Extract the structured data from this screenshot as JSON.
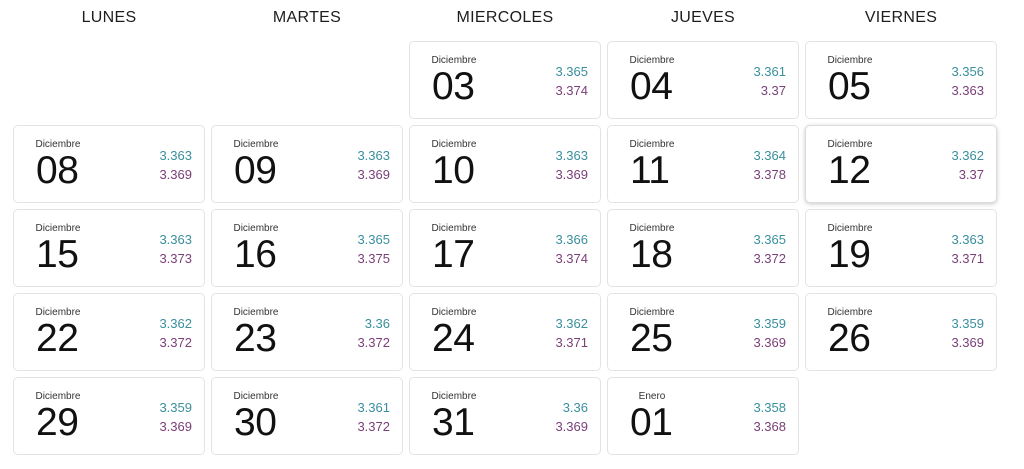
{
  "headers": [
    "LUNES",
    "MARTES",
    "MIERCOLES",
    "JUEVES",
    "VIERNES"
  ],
  "colors": {
    "buy": "#3a8f9d",
    "sell": "#7a3f78"
  },
  "weeks": [
    [
      null,
      null,
      {
        "month": "Diciembre",
        "day": "03",
        "buy": "3.365",
        "sell": "3.374"
      },
      {
        "month": "Diciembre",
        "day": "04",
        "buy": "3.361",
        "sell": "3.37"
      },
      {
        "month": "Diciembre",
        "day": "05",
        "buy": "3.356",
        "sell": "3.363"
      }
    ],
    [
      {
        "month": "Diciembre",
        "day": "08",
        "buy": "3.363",
        "sell": "3.369"
      },
      {
        "month": "Diciembre",
        "day": "09",
        "buy": "3.363",
        "sell": "3.369"
      },
      {
        "month": "Diciembre",
        "day": "10",
        "buy": "3.363",
        "sell": "3.369"
      },
      {
        "month": "Diciembre",
        "day": "11",
        "buy": "3.364",
        "sell": "3.378"
      },
      {
        "month": "Diciembre",
        "day": "12",
        "buy": "3.362",
        "sell": "3.37",
        "selected": true
      }
    ],
    [
      {
        "month": "Diciembre",
        "day": "15",
        "buy": "3.363",
        "sell": "3.373"
      },
      {
        "month": "Diciembre",
        "day": "16",
        "buy": "3.365",
        "sell": "3.375"
      },
      {
        "month": "Diciembre",
        "day": "17",
        "buy": "3.366",
        "sell": "3.374"
      },
      {
        "month": "Diciembre",
        "day": "18",
        "buy": "3.365",
        "sell": "3.372"
      },
      {
        "month": "Diciembre",
        "day": "19",
        "buy": "3.363",
        "sell": "3.371"
      }
    ],
    [
      {
        "month": "Diciembre",
        "day": "22",
        "buy": "3.362",
        "sell": "3.372"
      },
      {
        "month": "Diciembre",
        "day": "23",
        "buy": "3.36",
        "sell": "3.372"
      },
      {
        "month": "Diciembre",
        "day": "24",
        "buy": "3.362",
        "sell": "3.371"
      },
      {
        "month": "Diciembre",
        "day": "25",
        "buy": "3.359",
        "sell": "3.369"
      },
      {
        "month": "Diciembre",
        "day": "26",
        "buy": "3.359",
        "sell": "3.369"
      }
    ],
    [
      {
        "month": "Diciembre",
        "day": "29",
        "buy": "3.359",
        "sell": "3.369"
      },
      {
        "month": "Diciembre",
        "day": "30",
        "buy": "3.361",
        "sell": "3.372"
      },
      {
        "month": "Diciembre",
        "day": "31",
        "buy": "3.36",
        "sell": "3.369"
      },
      {
        "month": "Enero",
        "day": "01",
        "buy": "3.358",
        "sell": "3.368"
      },
      null
    ]
  ]
}
